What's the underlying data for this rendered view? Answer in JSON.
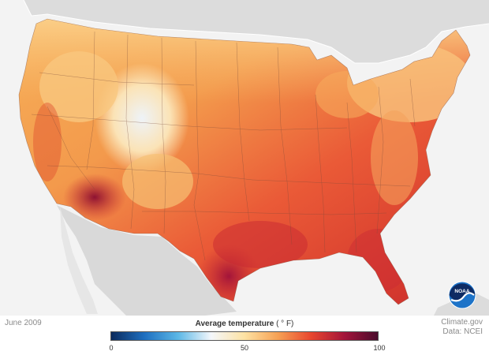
{
  "caption": {
    "date": "June 2009",
    "credit_line1": "Climate.gov",
    "credit_line2": "Data: NCEI"
  },
  "legend": {
    "title": "Average temperature",
    "unit": "( ° F)",
    "min_label": "0",
    "mid_label": "50",
    "max_label": "100",
    "gradient": [
      "#0b2a5c",
      "#1e6fc0",
      "#5bb7e6",
      "#f4f7fb",
      "#fde2a3",
      "#f6a154",
      "#e8462e",
      "#a3143a",
      "#4a0b2c"
    ]
  },
  "logo": {
    "text": "NOAA"
  },
  "colors": {
    "ocean": "#f3f3f3",
    "land_other": "#dcdcdc",
    "state_borders": "#7a4a3a"
  },
  "icons": [
    "noaa-logo-icon"
  ]
}
